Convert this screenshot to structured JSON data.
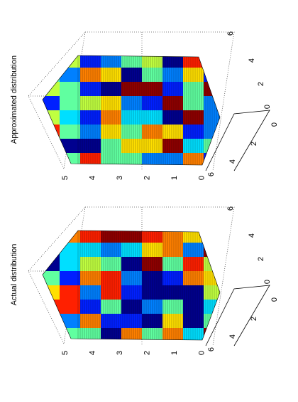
{
  "panels": [
    {
      "title": "Approximated distribution",
      "value_ticks": [
        5,
        4,
        3,
        2,
        1,
        0
      ],
      "front_ticks": [
        0,
        2,
        4,
        6
      ],
      "back_ticks": [
        6,
        4,
        2,
        0
      ]
    },
    {
      "title": "Actual distribution",
      "value_ticks": [
        5,
        4,
        3,
        2,
        1,
        0
      ],
      "front_ticks": [
        0,
        2,
        4,
        6
      ],
      "back_ticks": [
        6,
        4,
        2,
        0
      ]
    }
  ]
}
